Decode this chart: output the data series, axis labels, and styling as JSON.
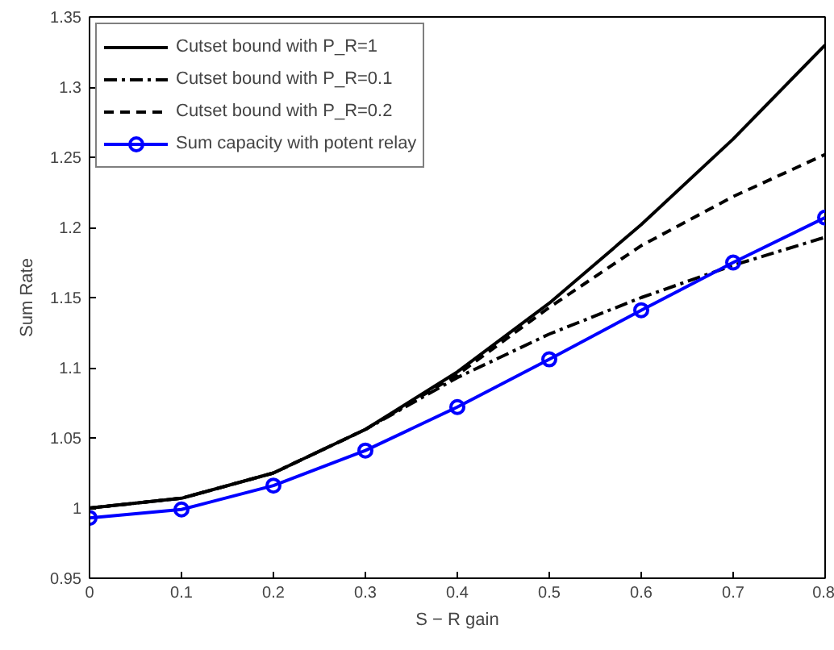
{
  "chart_data": {
    "type": "line",
    "xlabel": "S − R gain",
    "ylabel": "Sum Rate",
    "x": [
      0,
      0.1,
      0.2,
      0.3,
      0.4,
      0.5,
      0.6,
      0.7,
      0.8
    ],
    "xlim": [
      0,
      0.8
    ],
    "ylim": [
      0.95,
      1.35
    ],
    "xticks": [
      0,
      0.1,
      0.2,
      0.3,
      0.4,
      0.5,
      0.6,
      0.7,
      0.8
    ],
    "yticks": [
      0.95,
      1,
      1.05,
      1.1,
      1.15,
      1.2,
      1.25,
      1.3,
      1.35
    ],
    "grid": false,
    "legend": "top left",
    "series": [
      {
        "name": "Cutset bound with P_R=1",
        "color": "#000000",
        "line_style": "solid",
        "marker": "none",
        "values": [
          1.0,
          1.007,
          1.025,
          1.056,
          1.097,
          1.146,
          1.202,
          1.263,
          1.33
        ]
      },
      {
        "name": "Cutset bound with P_R=0.1",
        "color": "#000000",
        "line_style": "dashdot",
        "marker": "none",
        "values": [
          1.0,
          1.007,
          1.025,
          1.056,
          1.093,
          1.124,
          1.15,
          1.173,
          1.193
        ]
      },
      {
        "name": "Cutset bound with P_R=0.2",
        "color": "#000000",
        "line_style": "dashed",
        "marker": "none",
        "values": [
          1.0,
          1.007,
          1.025,
          1.056,
          1.095,
          1.143,
          1.187,
          1.222,
          1.252
        ]
      },
      {
        "name": "Sum capacity with potent relay",
        "color": "#0000ff",
        "line_style": "solid",
        "marker": "circle",
        "values": [
          0.993,
          0.999,
          1.016,
          1.041,
          1.072,
          1.106,
          1.141,
          1.175,
          1.207
        ]
      }
    ]
  }
}
